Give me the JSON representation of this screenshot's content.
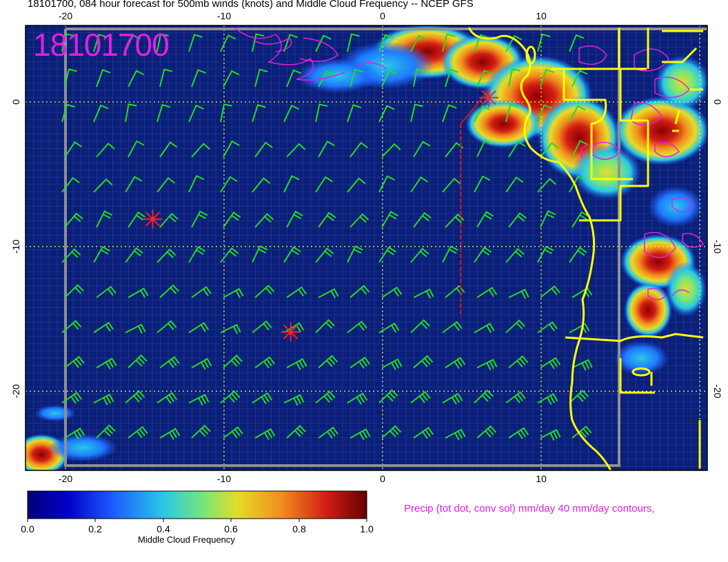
{
  "title": "18101700, 084 hour forecast for 500mb winds (knots) and Middle Cloud Frequency -- NCEP GFS",
  "date_stamp": "18101700",
  "precip_note": "Precip (tot dot, conv sol) mm/day 40 mm/day contours,",
  "colorbar": {
    "title": "Middle Cloud Frequency",
    "ticks": [
      "0.0",
      "0.2",
      "0.4",
      "0.6",
      "0.8",
      "1.0"
    ],
    "colors": [
      "#00007a",
      "#0000c8",
      "#1e5aff",
      "#28c8e6",
      "#78e678",
      "#e6dc28",
      "#f08c1e",
      "#d21e14",
      "#640000"
    ]
  },
  "axes": {
    "x_ticks": [
      "-20",
      "-10",
      "0",
      "10"
    ],
    "y_ticks": [
      "0",
      "-10",
      "-20"
    ],
    "lon_range": [
      -22.5,
      20.5
    ],
    "lat_range": [
      -25.5,
      5.0
    ]
  },
  "colors": {
    "background": "#0a1f78",
    "coast": "#ffff00",
    "barb": "#22dd22",
    "precip_contour": "#e020e0",
    "track": "#e01010",
    "grid_dot": "#ffff40"
  },
  "storm_markers": [
    {
      "lon": -14.5,
      "lat": -8.1
    },
    {
      "lon": -5.8,
      "lat": -15.9
    },
    {
      "lon": 6.7,
      "lat": 0.3
    }
  ]
}
